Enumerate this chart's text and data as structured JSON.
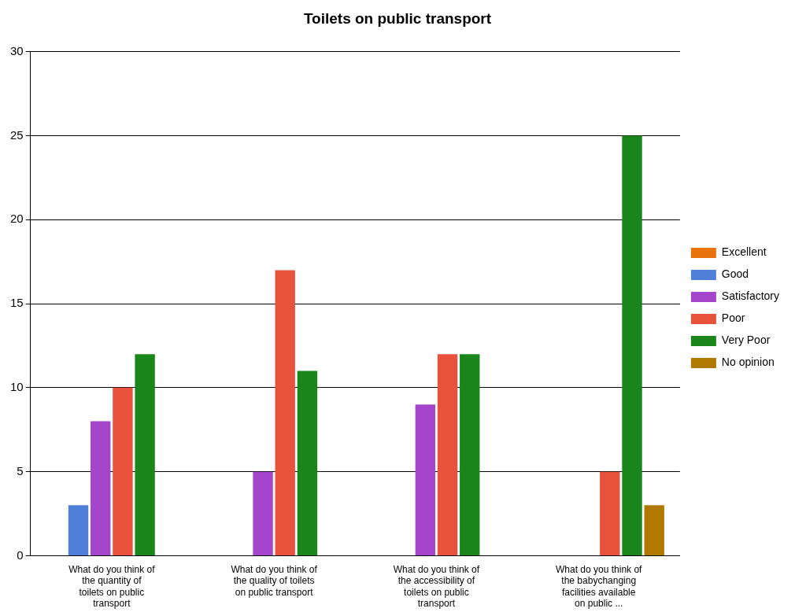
{
  "chart_data": {
    "type": "bar",
    "title": "Toilets on public transport",
    "categories": [
      "What do you think of the quantity of toilets on public transport",
      "What do you think of the quality of toilets on public transport",
      "What do you think of the accessibility of toilets on public transport",
      "What do you think of the babychanging facilities available on public ..."
    ],
    "series": [
      {
        "name": "Excellent",
        "color": "#e8720c",
        "values": [
          0,
          0,
          0,
          0
        ]
      },
      {
        "name": "Good",
        "color": "#4f7fd6",
        "values": [
          3,
          0,
          0,
          0
        ]
      },
      {
        "name": "Satisfactory",
        "color": "#a445cc",
        "values": [
          8,
          5,
          9,
          0
        ]
      },
      {
        "name": "Poor",
        "color": "#e8523c",
        "values": [
          10,
          17,
          12,
          5
        ]
      },
      {
        "name": "Very Poor",
        "color": "#1a851a",
        "values": [
          12,
          11,
          12,
          25
        ]
      },
      {
        "name": "No opinion",
        "color": "#b07a00",
        "values": [
          0,
          0,
          0,
          3
        ]
      }
    ],
    "ylim": [
      0,
      30
    ],
    "yticks": [
      0,
      5,
      10,
      15,
      20,
      25,
      30
    ],
    "grid": "y",
    "legend": "right"
  }
}
